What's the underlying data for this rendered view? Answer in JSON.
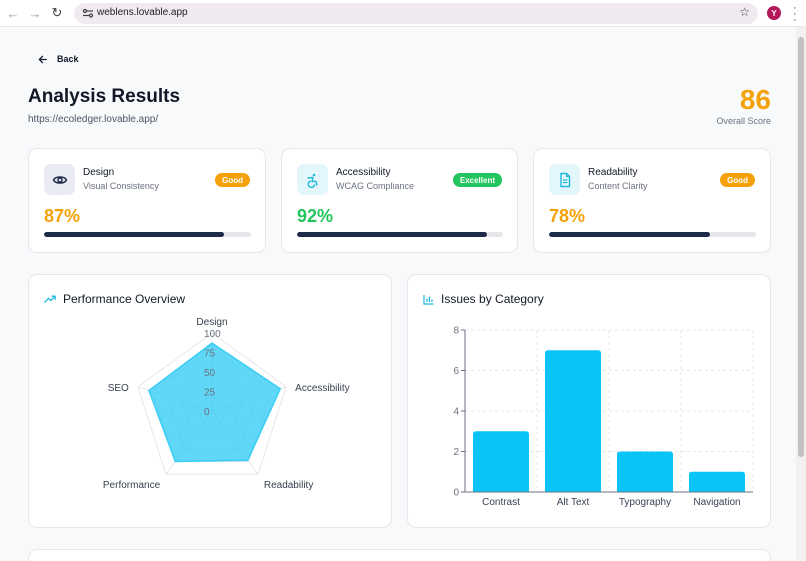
{
  "browser": {
    "url": "weblens.lovable.app",
    "avatar_letter": "Y"
  },
  "header": {
    "back_label": "Back",
    "title": "Analysis Results",
    "analyzed_url": "https://ecoledger.lovable.app/",
    "overall_score": "86",
    "overall_label": "Overall Score"
  },
  "metrics": [
    {
      "title": "Design",
      "subtitle": "Visual Consistency",
      "badge": "Good",
      "badge_color": "#f5a20a",
      "value_text": "87%",
      "value": 87,
      "value_color": "#f5a20a",
      "icon": "eye-icon",
      "icon_bg": "#e8ebf2"
    },
    {
      "title": "Accessibility",
      "subtitle": "WCAG Compliance",
      "badge": "Excellent",
      "badge_color": "#22c55e",
      "value_text": "92%",
      "value": 92,
      "value_color": "#22c55e",
      "icon": "accessibility-icon",
      "icon_bg": "#e3f6fb"
    },
    {
      "title": "Readability",
      "subtitle": "Content Clarity",
      "badge": "Good",
      "badge_color": "#f5a20a",
      "value_text": "78%",
      "value": 78,
      "value_color": "#f5a20a",
      "icon": "document-icon",
      "icon_bg": "#e3f6fb"
    }
  ],
  "performance": {
    "title": "Performance Overview",
    "chart_data": {
      "type": "radar",
      "categories": [
        "Design",
        "Accessibility",
        "Readability",
        "Performance",
        "SEO"
      ],
      "values": [
        87,
        92,
        78,
        80,
        85
      ],
      "range": [
        0,
        100
      ],
      "ticks": [
        "0",
        "25",
        "50",
        "75",
        "100"
      ],
      "color": "#38cdf5"
    }
  },
  "issues": {
    "title": "Issues by Category",
    "chart_data": {
      "type": "bar",
      "categories": [
        "Contrast",
        "Alt Text",
        "Typography",
        "Navigation"
      ],
      "values": [
        3,
        7,
        2,
        1
      ],
      "ylim": [
        0,
        8
      ],
      "yticks": [
        "0",
        "2",
        "4",
        "6",
        "8"
      ],
      "grid": true,
      "color": "#08c4f8"
    }
  }
}
